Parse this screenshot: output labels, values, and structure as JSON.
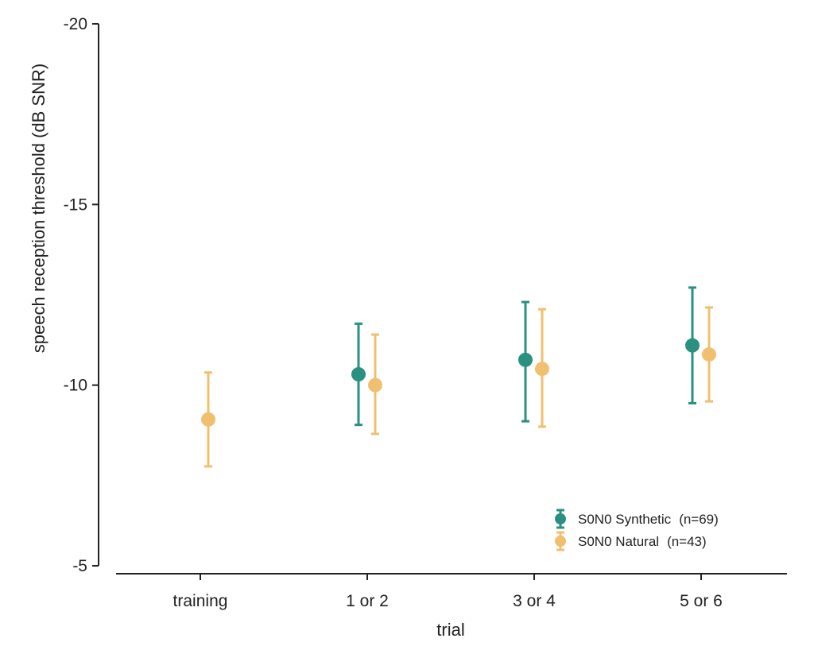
{
  "chart_data": {
    "type": "scatter",
    "xlabel": "trial",
    "ylabel": "speech reception threshold (dB SNR)",
    "categories": [
      "training",
      "1 or 2",
      "3 or 4",
      "5 or 6"
    ],
    "ylim": [
      -5,
      -20
    ],
    "y_axis_inverted": true,
    "yticks": [
      -20,
      -15,
      -10,
      -5
    ],
    "ytick_labels": [
      "-20",
      "-15",
      "-10",
      "-5"
    ],
    "grid": false,
    "legend_position": "bottom-right",
    "series": [
      {
        "name": "S0N0 Synthetic",
        "n_label": "(n=69)",
        "color": "#2a9080",
        "points": [
          {
            "category": "1 or 2",
            "y": -10.3,
            "err_low": -8.9,
            "err_high": -11.7
          },
          {
            "category": "3 or 4",
            "y": -10.7,
            "err_low": -9.0,
            "err_high": -12.3
          },
          {
            "category": "5 or 6",
            "y": -11.1,
            "err_low": -9.5,
            "err_high": -12.7
          }
        ]
      },
      {
        "name": "S0N0 Natural",
        "n_label": "(n=43)",
        "color": "#f0c070",
        "points": [
          {
            "category": "training",
            "y": -9.05,
            "err_low": -7.75,
            "err_high": -10.35
          },
          {
            "category": "1 or 2",
            "y": -10.0,
            "err_low": -8.65,
            "err_high": -11.4
          },
          {
            "category": "3 or 4",
            "y": -10.45,
            "err_low": -8.85,
            "err_high": -12.1
          },
          {
            "category": "5 or 6",
            "y": -10.85,
            "err_low": -9.55,
            "err_high": -12.15
          }
        ]
      }
    ]
  }
}
